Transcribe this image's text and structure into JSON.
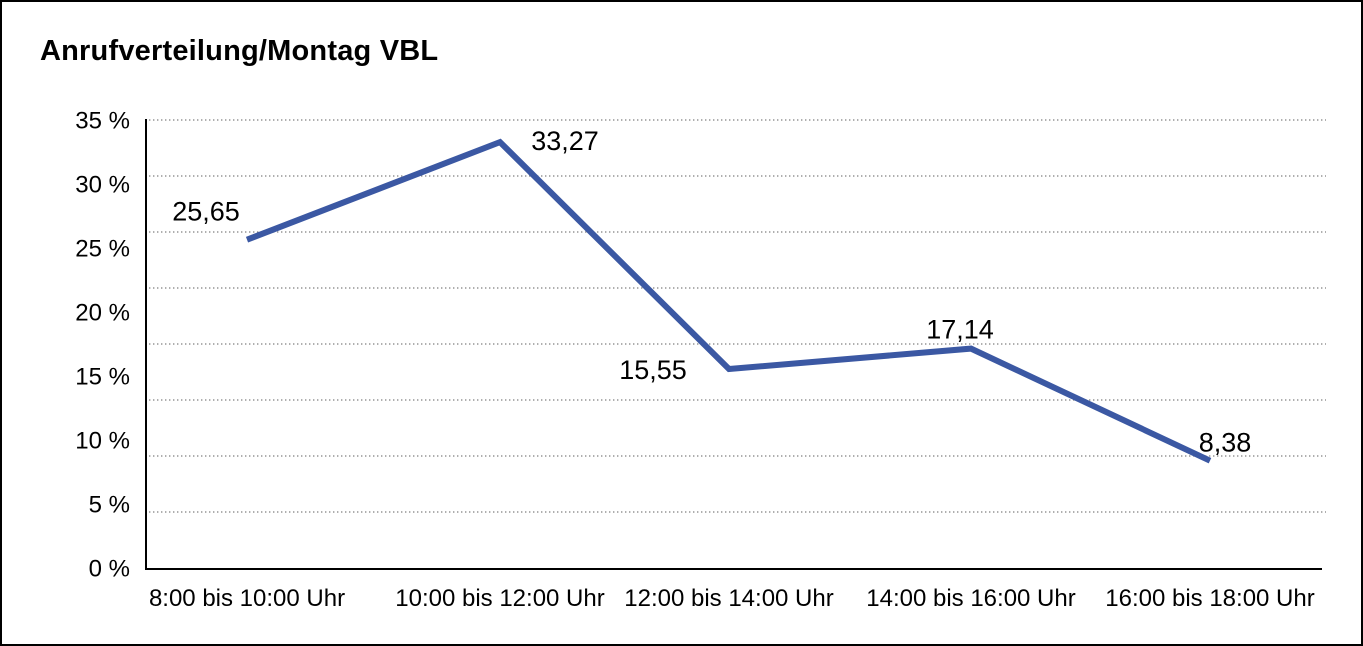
{
  "title": "Anrufverteilung/Montag VBL",
  "colors": {
    "line": "#3B58A3",
    "grid": "#7f7f7f",
    "axis": "#000000",
    "text": "#000000",
    "background": "#ffffff",
    "frame_border": "#000000"
  },
  "chart_data": {
    "type": "line",
    "title": "Anrufverteilung/Montag VBL",
    "categories": [
      "8:00 bis 10:00 Uhr",
      "10:00 bis 12:00 Uhr",
      "12:00 bis 14:00 Uhr",
      "14:00 bis 16:00 Uhr",
      "16:00 bis 18:00 Uhr"
    ],
    "values": [
      25.65,
      33.27,
      15.55,
      17.14,
      8.38
    ],
    "value_labels": [
      "25,65",
      "33,27",
      "15,55",
      "17,14",
      "8,38"
    ],
    "unit": "%",
    "ylim": [
      0,
      35
    ],
    "ytick_step": 5,
    "ytick_labels": [
      "0 %",
      "5 %",
      "10 %",
      "15 %",
      "20 %",
      "25 %",
      "30 %",
      "35 %"
    ],
    "grid": "horizontal-dotted",
    "grid_divisions": 8,
    "legend": "none",
    "markers": "none"
  }
}
